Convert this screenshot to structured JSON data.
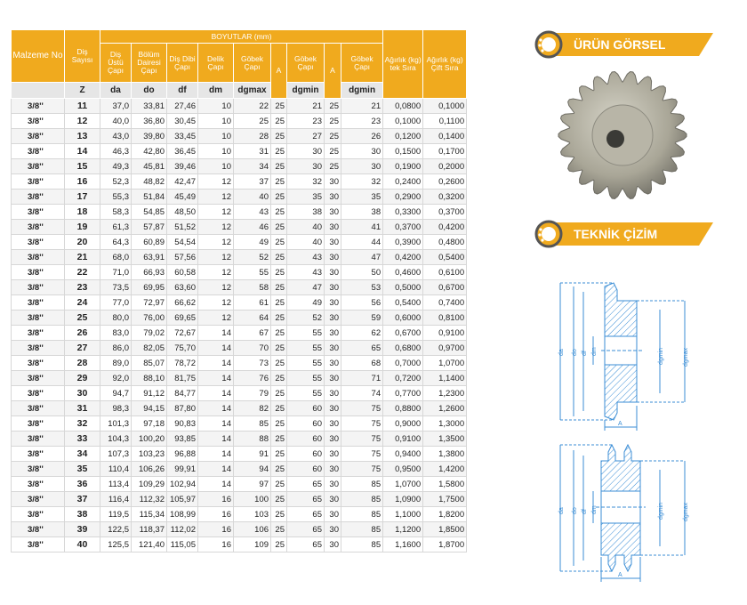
{
  "table": {
    "header": {
      "malzeme": "Malzeme No",
      "dis_sayisi": "Diş Sayısı",
      "boyutlar": "BOYUTLAR (mm)",
      "columns": [
        "Diş Üstü Çapı",
        "Bölüm Dairesi Çapı",
        "Diş Dibi Çapı",
        "Delik Çapı",
        "Göbek Çapı",
        "A",
        "Göbek Çapı",
        "A",
        "Göbek Çapı"
      ],
      "agirlik_tek": "Ağırlık (kg) tek Sıra",
      "agirlik_cift": "Ağırlık (kg) Çift Sıra"
    },
    "symbols": [
      "Z",
      "da",
      "do",
      "df",
      "dm",
      "dgmax",
      "dgmin",
      "dgmin"
    ],
    "rows": [
      [
        "3/8''",
        "11",
        "37,0",
        "33,81",
        "27,46",
        "10",
        "22",
        "25",
        "21",
        "25",
        "21",
        "0,0800",
        "0,1000"
      ],
      [
        "3/8''",
        "12",
        "40,0",
        "36,80",
        "30,45",
        "10",
        "25",
        "25",
        "23",
        "25",
        "23",
        "0,1000",
        "0,1100"
      ],
      [
        "3/8''",
        "13",
        "43,0",
        "39,80",
        "33,45",
        "10",
        "28",
        "25",
        "27",
        "25",
        "26",
        "0,1200",
        "0,1400"
      ],
      [
        "3/8''",
        "14",
        "46,3",
        "42,80",
        "36,45",
        "10",
        "31",
        "25",
        "30",
        "25",
        "30",
        "0,1500",
        "0,1700"
      ],
      [
        "3/8''",
        "15",
        "49,3",
        "45,81",
        "39,46",
        "10",
        "34",
        "25",
        "30",
        "25",
        "30",
        "0,1900",
        "0,2000"
      ],
      [
        "3/8''",
        "16",
        "52,3",
        "48,82",
        "42,47",
        "12",
        "37",
        "25",
        "32",
        "30",
        "32",
        "0,2400",
        "0,2600"
      ],
      [
        "3/8''",
        "17",
        "55,3",
        "51,84",
        "45,49",
        "12",
        "40",
        "25",
        "35",
        "30",
        "35",
        "0,2900",
        "0,3200"
      ],
      [
        "3/8''",
        "18",
        "58,3",
        "54,85",
        "48,50",
        "12",
        "43",
        "25",
        "38",
        "30",
        "38",
        "0,3300",
        "0,3700"
      ],
      [
        "3/8''",
        "19",
        "61,3",
        "57,87",
        "51,52",
        "12",
        "46",
        "25",
        "40",
        "30",
        "41",
        "0,3700",
        "0,4200"
      ],
      [
        "3/8''",
        "20",
        "64,3",
        "60,89",
        "54,54",
        "12",
        "49",
        "25",
        "40",
        "30",
        "44",
        "0,3900",
        "0,4800"
      ],
      [
        "3/8''",
        "21",
        "68,0",
        "63,91",
        "57,56",
        "12",
        "52",
        "25",
        "43",
        "30",
        "47",
        "0,4200",
        "0,5400"
      ],
      [
        "3/8''",
        "22",
        "71,0",
        "66,93",
        "60,58",
        "12",
        "55",
        "25",
        "43",
        "30",
        "50",
        "0,4600",
        "0,6100"
      ],
      [
        "3/8''",
        "23",
        "73,5",
        "69,95",
        "63,60",
        "12",
        "58",
        "25",
        "47",
        "30",
        "53",
        "0,5000",
        "0,6700"
      ],
      [
        "3/8''",
        "24",
        "77,0",
        "72,97",
        "66,62",
        "12",
        "61",
        "25",
        "49",
        "30",
        "56",
        "0,5400",
        "0,7400"
      ],
      [
        "3/8''",
        "25",
        "80,0",
        "76,00",
        "69,65",
        "12",
        "64",
        "25",
        "52",
        "30",
        "59",
        "0,6000",
        "0,8100"
      ],
      [
        "3/8''",
        "26",
        "83,0",
        "79,02",
        "72,67",
        "14",
        "67",
        "25",
        "55",
        "30",
        "62",
        "0,6700",
        "0,9100"
      ],
      [
        "3/8''",
        "27",
        "86,0",
        "82,05",
        "75,70",
        "14",
        "70",
        "25",
        "55",
        "30",
        "65",
        "0,6800",
        "0,9700"
      ],
      [
        "3/8''",
        "28",
        "89,0",
        "85,07",
        "78,72",
        "14",
        "73",
        "25",
        "55",
        "30",
        "68",
        "0,7000",
        "1,0700"
      ],
      [
        "3/8''",
        "29",
        "92,0",
        "88,10",
        "81,75",
        "14",
        "76",
        "25",
        "55",
        "30",
        "71",
        "0,7200",
        "1,1400"
      ],
      [
        "3/8''",
        "30",
        "94,7",
        "91,12",
        "84,77",
        "14",
        "79",
        "25",
        "55",
        "30",
        "74",
        "0,7700",
        "1,2300"
      ],
      [
        "3/8''",
        "31",
        "98,3",
        "94,15",
        "87,80",
        "14",
        "82",
        "25",
        "60",
        "30",
        "75",
        "0,8800",
        "1,2600"
      ],
      [
        "3/8''",
        "32",
        "101,3",
        "97,18",
        "90,83",
        "14",
        "85",
        "25",
        "60",
        "30",
        "75",
        "0,9000",
        "1,3000"
      ],
      [
        "3/8''",
        "33",
        "104,3",
        "100,20",
        "93,85",
        "14",
        "88",
        "25",
        "60",
        "30",
        "75",
        "0,9100",
        "1,3500"
      ],
      [
        "3/8''",
        "34",
        "107,3",
        "103,23",
        "96,88",
        "14",
        "91",
        "25",
        "60",
        "30",
        "75",
        "0,9400",
        "1,3800"
      ],
      [
        "3/8''",
        "35",
        "110,4",
        "106,26",
        "99,91",
        "14",
        "94",
        "25",
        "60",
        "30",
        "75",
        "0,9500",
        "1,4200"
      ],
      [
        "3/8''",
        "36",
        "113,4",
        "109,29",
        "102,94",
        "14",
        "97",
        "25",
        "65",
        "30",
        "85",
        "1,0700",
        "1,5800"
      ],
      [
        "3/8''",
        "37",
        "116,4",
        "112,32",
        "105,97",
        "16",
        "100",
        "25",
        "65",
        "30",
        "85",
        "1,0900",
        "1,7500"
      ],
      [
        "3/8''",
        "38",
        "119,5",
        "115,34",
        "108,99",
        "16",
        "103",
        "25",
        "65",
        "30",
        "85",
        "1,1000",
        "1,8200"
      ],
      [
        "3/8''",
        "39",
        "122,5",
        "118,37",
        "112,02",
        "16",
        "106",
        "25",
        "65",
        "30",
        "85",
        "1,1200",
        "1,8500"
      ],
      [
        "3/8''",
        "40",
        "125,5",
        "121,40",
        "115,05",
        "16",
        "109",
        "25",
        "65",
        "30",
        "85",
        "1,1600",
        "1,8700"
      ]
    ]
  },
  "side": {
    "product_title": "ÜRÜN GÖRSEL",
    "technical_title": "TEKNİK ÇİZİM",
    "drawing_top": {
      "labels": [
        "da",
        "do",
        "df",
        "dm",
        "dgmin",
        "dgmax",
        "A"
      ]
    },
    "drawing_bottom": {
      "labels": [
        "da",
        "do",
        "df",
        "dm",
        "dgmin",
        "dgmax",
        "A"
      ]
    }
  }
}
